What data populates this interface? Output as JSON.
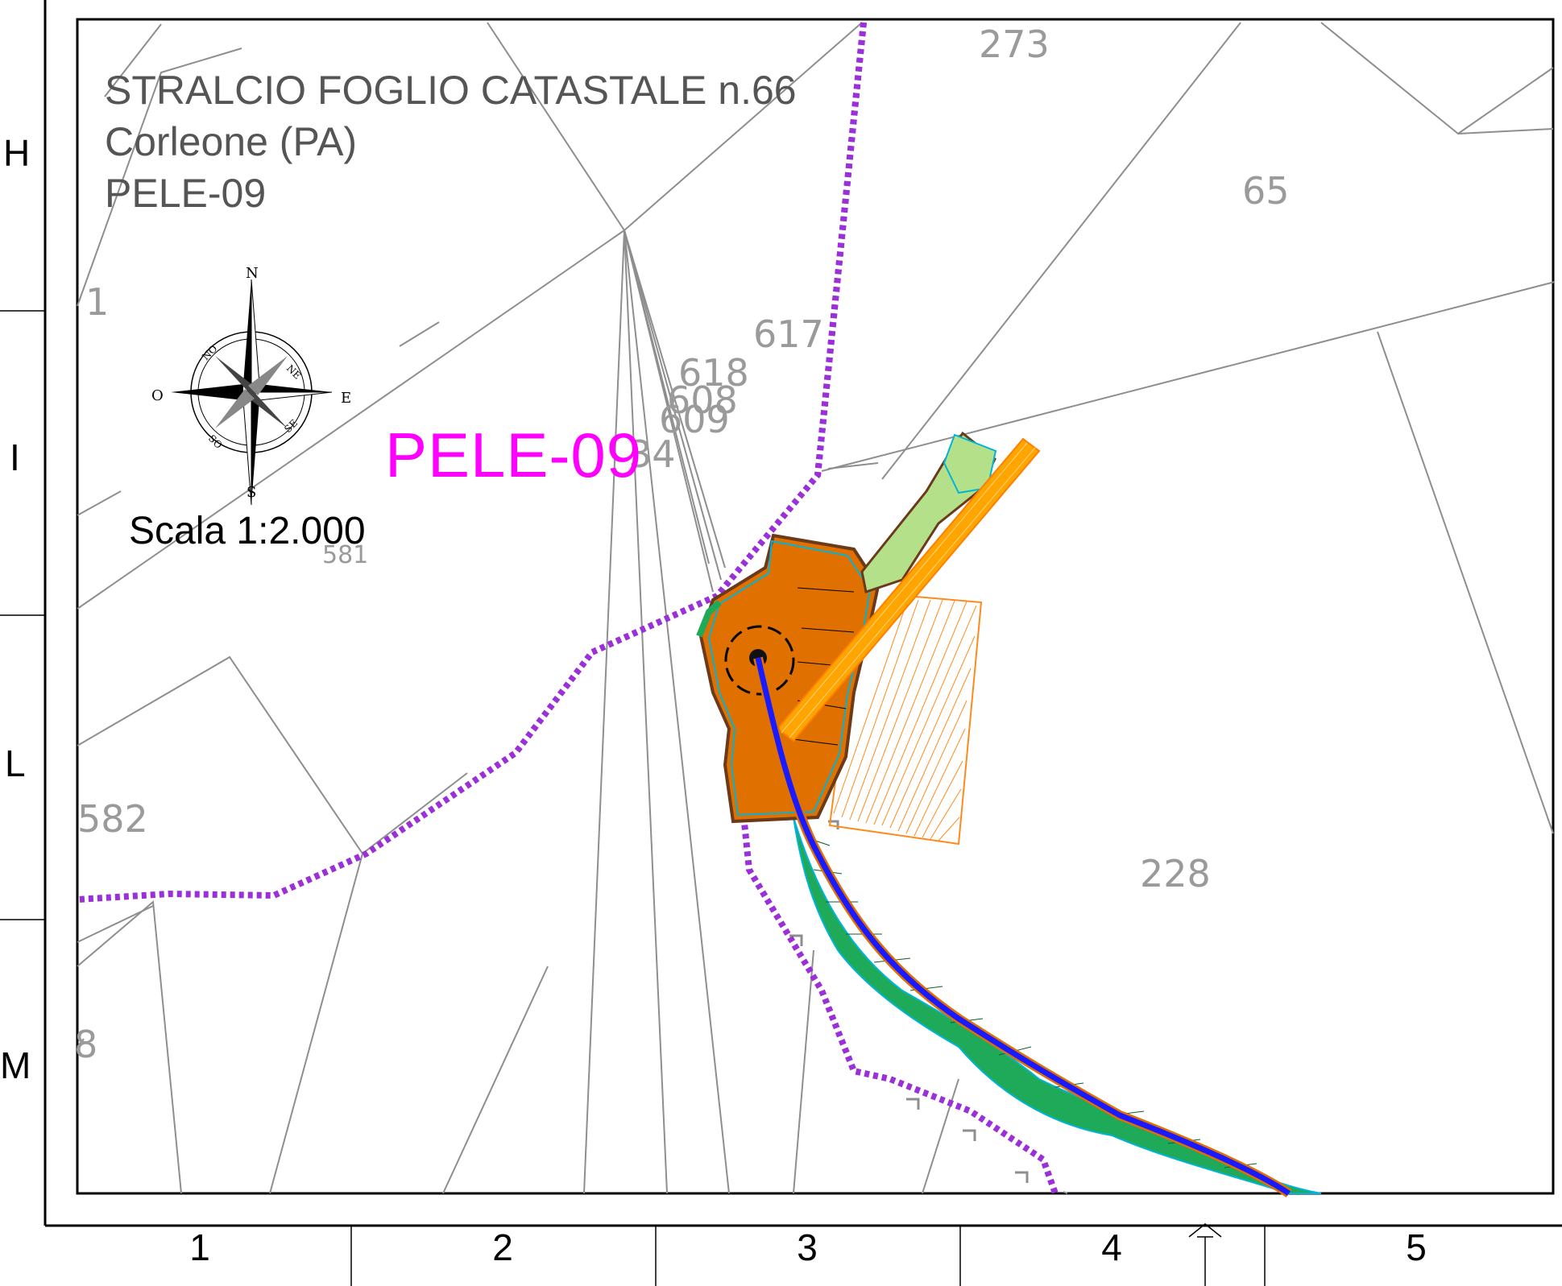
{
  "title": {
    "line1": "STRALCIO FOGLIO CATASTALE n.66",
    "line2": "Corleone (PA)",
    "line3": "PELE-09"
  },
  "scale_label": "Scala 1:2.000",
  "site_label": "PELE-09",
  "compass": {
    "n": "N",
    "s": "S",
    "e": "E",
    "o": "O",
    "ne": "NE",
    "no": "NO",
    "se": "SE",
    "so": "SO"
  },
  "row_labels": [
    "H",
    "I",
    "L",
    "M"
  ],
  "col_labels": [
    "1",
    "2",
    "3",
    "4",
    "5"
  ],
  "parcels": [
    "273",
    "65",
    "617",
    "618",
    "608",
    "609",
    "34",
    "582",
    "228",
    "1",
    "581",
    "8"
  ],
  "colors": {
    "boundary": "#9b30d9",
    "platform": "#e07000",
    "slope": "#1faa5a",
    "road_axis": "#1a1aff",
    "crane_pad": "#ffa500",
    "access": "#b5e08a",
    "site_label": "#ff00ff"
  }
}
